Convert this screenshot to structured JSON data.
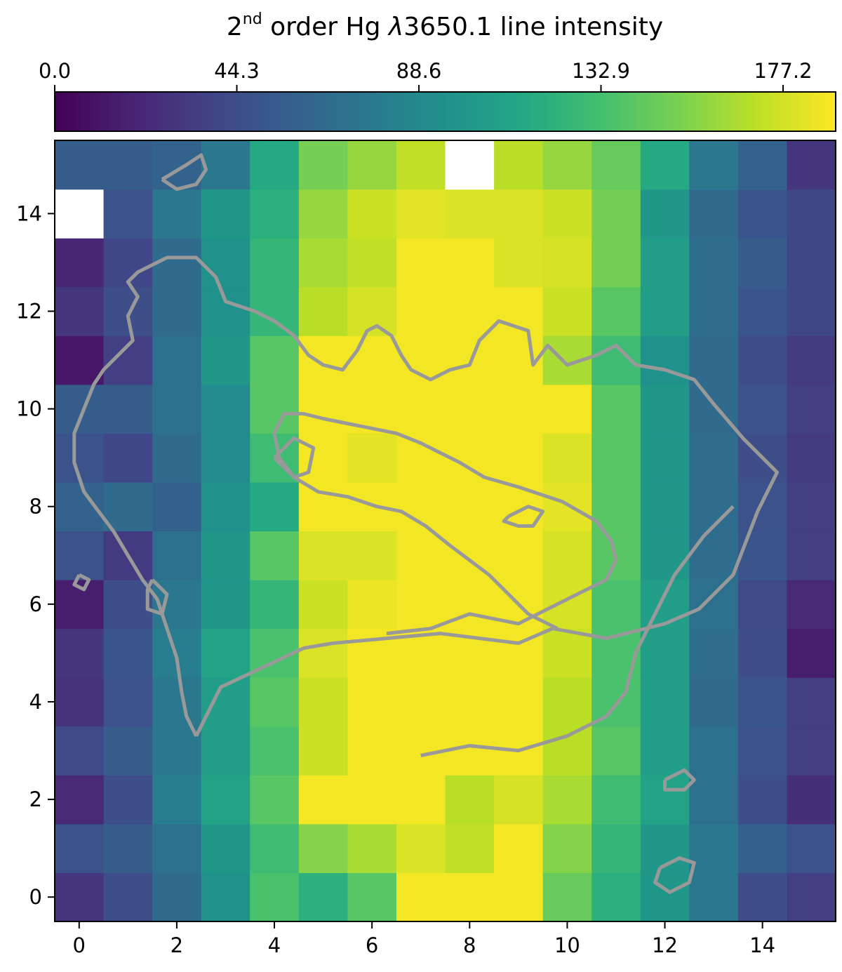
{
  "chart_data": {
    "type": "heatmap",
    "title": {
      "prefix": "2",
      "superscript": "nd",
      "text": " order Hg ",
      "lambda": "λ",
      "rest": "3650.1 line intensity"
    },
    "colormap": "viridis",
    "vmin": 0.0,
    "vmax": 190.0,
    "colorbar": {
      "orientation": "horizontal",
      "position": "top",
      "ticks": [
        0.0,
        44.3,
        88.6,
        132.9,
        177.2
      ],
      "tick_labels": [
        "0.0",
        "44.3",
        "88.6",
        "132.9",
        "177.2"
      ]
    },
    "x_range": [
      -0.5,
      15.5
    ],
    "y_range": [
      -0.5,
      15.5
    ],
    "x_ticks": [
      0,
      2,
      4,
      6,
      8,
      10,
      12,
      14
    ],
    "y_ticks": [
      0,
      2,
      4,
      6,
      8,
      10,
      12,
      14
    ],
    "x_tick_labels": [
      "0",
      "2",
      "4",
      "6",
      "8",
      "10",
      "12",
      "14"
    ],
    "y_tick_labels": [
      "0",
      "2",
      "4",
      "6",
      "8",
      "10",
      "12",
      "14"
    ],
    "grid": false,
    "missing_value": "blank (white) pixel",
    "values_row_major_y0_to_y15": [
      [
        30,
        45,
        65,
        95,
        135,
        120,
        140,
        187,
        187,
        187,
        145,
        120,
        100,
        75,
        45,
        35
      ],
      [
        48,
        55,
        70,
        100,
        130,
        155,
        165,
        180,
        172,
        187,
        155,
        125,
        100,
        75,
        58,
        48
      ],
      [
        22,
        45,
        80,
        110,
        140,
        187,
        187,
        187,
        170,
        178,
        165,
        130,
        110,
        70,
        45,
        25
      ],
      [
        42,
        55,
        75,
        105,
        135,
        175,
        187,
        187,
        187,
        187,
        170,
        140,
        105,
        70,
        48,
        35
      ],
      [
        28,
        48,
        75,
        105,
        140,
        175,
        187,
        187,
        187,
        187,
        170,
        135,
        105,
        65,
        50,
        35
      ],
      [
        30,
        50,
        80,
        110,
        135,
        180,
        187,
        187,
        187,
        187,
        175,
        135,
        105,
        68,
        45,
        15
      ],
      [
        15,
        45,
        75,
        100,
        125,
        175,
        185,
        187,
        187,
        187,
        178,
        135,
        105,
        70,
        42,
        22
      ],
      [
        48,
        32,
        70,
        100,
        140,
        180,
        180,
        187,
        187,
        187,
        178,
        140,
        100,
        68,
        50,
        35
      ],
      [
        60,
        65,
        58,
        95,
        115,
        187,
        187,
        187,
        187,
        187,
        182,
        140,
        100,
        68,
        48,
        35
      ],
      [
        48,
        40,
        65,
        90,
        130,
        187,
        182,
        187,
        187,
        187,
        180,
        140,
        100,
        68,
        45,
        32
      ],
      [
        55,
        55,
        70,
        90,
        140,
        187,
        187,
        187,
        187,
        187,
        187,
        140,
        100,
        65,
        48,
        35
      ],
      [
        12,
        35,
        70,
        100,
        140,
        187,
        187,
        187,
        187,
        187,
        165,
        130,
        95,
        65,
        45,
        32
      ],
      [
        30,
        45,
        65,
        95,
        125,
        170,
        178,
        187,
        187,
        187,
        175,
        140,
        105,
        68,
        50,
        40
      ],
      [
        20,
        40,
        65,
        95,
        125,
        165,
        172,
        187,
        187,
        180,
        178,
        150,
        105,
        68,
        55,
        40
      ],
      [
        null,
        48,
        75,
        100,
        120,
        160,
        175,
        182,
        180,
        180,
        175,
        150,
        100,
        65,
        50,
        40
      ],
      [
        55,
        55,
        60,
        75,
        115,
        150,
        160,
        172,
        null,
        170,
        160,
        145,
        115,
        75,
        60,
        30
      ]
    ],
    "contour_color": "#999999",
    "contours": [
      [
        [
          2.4,
          3.3
        ],
        [
          2.9,
          4.3
        ],
        [
          4.6,
          5.1
        ],
        [
          5.2,
          5.2
        ],
        [
          7.4,
          5.4
        ],
        [
          9.0,
          5.2
        ],
        [
          9.7,
          5.5
        ],
        [
          10.8,
          5.3
        ],
        [
          12.0,
          5.6
        ],
        [
          12.7,
          5.9
        ],
        [
          13.4,
          6.6
        ],
        [
          13.9,
          7.9
        ],
        [
          14.3,
          8.7
        ],
        [
          13.6,
          9.4
        ],
        [
          13.0,
          10.1
        ],
        [
          12.6,
          10.6
        ],
        [
          12.0,
          10.8
        ],
        [
          11.4,
          10.9
        ],
        [
          11.0,
          11.3
        ],
        [
          10.6,
          11.1
        ],
        [
          10.0,
          10.9
        ],
        [
          9.6,
          11.3
        ],
        [
          9.3,
          10.9
        ],
        [
          9.2,
          11.6
        ],
        [
          8.6,
          11.8
        ],
        [
          8.2,
          11.4
        ],
        [
          8.0,
          10.9
        ],
        [
          7.6,
          10.8
        ],
        [
          7.2,
          10.6
        ],
        [
          6.8,
          10.8
        ],
        [
          6.6,
          11.1
        ],
        [
          6.4,
          11.5
        ],
        [
          6.1,
          11.7
        ],
        [
          5.9,
          11.6
        ],
        [
          5.7,
          11.2
        ],
        [
          5.4,
          10.8
        ],
        [
          5.0,
          10.9
        ],
        [
          4.7,
          11.1
        ],
        [
          4.4,
          11.5
        ],
        [
          4.0,
          11.8
        ],
        [
          3.6,
          12.0
        ],
        [
          3.0,
          12.2
        ],
        [
          2.8,
          12.7
        ],
        [
          2.4,
          13.1
        ],
        [
          1.8,
          13.1
        ],
        [
          1.2,
          12.8
        ],
        [
          1.0,
          12.6
        ],
        [
          1.2,
          12.3
        ],
        [
          1.0,
          11.9
        ],
        [
          1.1,
          11.4
        ],
        [
          0.7,
          11.0
        ],
        [
          0.5,
          10.8
        ],
        [
          0.3,
          10.5
        ],
        [
          0.1,
          10.0
        ],
        [
          -0.1,
          9.5
        ],
        [
          -0.1,
          8.9
        ],
        [
          0.1,
          8.3
        ],
        [
          0.4,
          7.9
        ],
        [
          0.7,
          7.5
        ],
        [
          1.0,
          7.0
        ],
        [
          1.3,
          6.5
        ],
        [
          1.6,
          6.1
        ],
        [
          1.8,
          5.5
        ],
        [
          2.0,
          4.9
        ],
        [
          2.1,
          4.2
        ],
        [
          2.2,
          3.7
        ],
        [
          2.4,
          3.3
        ]
      ],
      [
        [
          6.3,
          5.4
        ],
        [
          7.2,
          5.5
        ],
        [
          8.0,
          5.8
        ],
        [
          9.0,
          5.6
        ],
        [
          10.2,
          6.2
        ],
        [
          10.8,
          6.5
        ],
        [
          11.0,
          6.9
        ],
        [
          10.9,
          7.3
        ],
        [
          10.6,
          7.7
        ],
        [
          9.9,
          8.1
        ],
        [
          9.0,
          8.4
        ],
        [
          8.3,
          8.6
        ],
        [
          7.8,
          8.9
        ],
        [
          7.4,
          9.1
        ],
        [
          7.0,
          9.3
        ],
        [
          6.5,
          9.5
        ],
        [
          6.0,
          9.6
        ],
        [
          5.5,
          9.7
        ],
        [
          5.0,
          9.8
        ],
        [
          4.6,
          9.9
        ],
        [
          4.2,
          9.9
        ],
        [
          4.0,
          9.5
        ],
        [
          4.1,
          9.0
        ],
        [
          4.4,
          8.6
        ],
        [
          4.9,
          8.3
        ],
        [
          5.5,
          8.2
        ],
        [
          6.1,
          8.0
        ],
        [
          6.6,
          7.9
        ],
        [
          7.1,
          7.6
        ],
        [
          7.6,
          7.2
        ],
        [
          8.0,
          6.9
        ],
        [
          8.4,
          6.6
        ],
        [
          8.8,
          6.2
        ],
        [
          9.2,
          5.8
        ],
        [
          9.6,
          5.6
        ],
        [
          9.8,
          5.5
        ]
      ],
      [
        [
          8.8,
          7.8
        ],
        [
          9.2,
          8.0
        ],
        [
          9.5,
          7.9
        ],
        [
          9.3,
          7.6
        ],
        [
          9.0,
          7.6
        ],
        [
          8.7,
          7.7
        ],
        [
          8.8,
          7.8
        ]
      ],
      [
        [
          7.0,
          2.9
        ],
        [
          8.0,
          3.1
        ],
        [
          9.0,
          3.0
        ],
        [
          10.0,
          3.3
        ],
        [
          10.8,
          3.7
        ],
        [
          11.2,
          4.2
        ],
        [
          11.4,
          5.0
        ],
        [
          11.6,
          5.4
        ],
        [
          11.8,
          5.8
        ],
        [
          12.0,
          6.2
        ],
        [
          12.2,
          6.6
        ],
        [
          12.5,
          7.0
        ],
        [
          12.8,
          7.4
        ],
        [
          13.2,
          7.8
        ],
        [
          13.4,
          8.0
        ]
      ],
      [
        [
          12.0,
          2.4
        ],
        [
          12.4,
          2.6
        ],
        [
          12.6,
          2.4
        ],
        [
          12.4,
          2.2
        ],
        [
          12.0,
          2.2
        ],
        [
          12.0,
          2.4
        ]
      ],
      [
        [
          11.9,
          0.6
        ],
        [
          12.3,
          0.8
        ],
        [
          12.6,
          0.7
        ],
        [
          12.5,
          0.3
        ],
        [
          12.1,
          0.1
        ],
        [
          11.8,
          0.3
        ],
        [
          11.9,
          0.6
        ]
      ],
      [
        [
          0.0,
          6.6
        ],
        [
          0.2,
          6.5
        ],
        [
          0.1,
          6.3
        ],
        [
          -0.1,
          6.4
        ],
        [
          0.0,
          6.6
        ]
      ],
      [
        [
          1.5,
          6.5
        ],
        [
          1.8,
          6.2
        ],
        [
          1.7,
          5.8
        ],
        [
          1.4,
          5.9
        ],
        [
          1.4,
          6.3
        ],
        [
          1.5,
          6.5
        ]
      ],
      [
        [
          1.7,
          14.7
        ],
        [
          2.2,
          15.0
        ],
        [
          2.5,
          15.2
        ],
        [
          2.6,
          14.9
        ],
        [
          2.4,
          14.6
        ],
        [
          2.0,
          14.5
        ],
        [
          1.7,
          14.7
        ]
      ],
      [
        [
          4.0,
          9.0
        ],
        [
          4.4,
          9.4
        ],
        [
          4.8,
          9.2
        ],
        [
          4.7,
          8.7
        ],
        [
          4.4,
          8.6
        ],
        [
          4.0,
          9.0
        ]
      ]
    ]
  }
}
